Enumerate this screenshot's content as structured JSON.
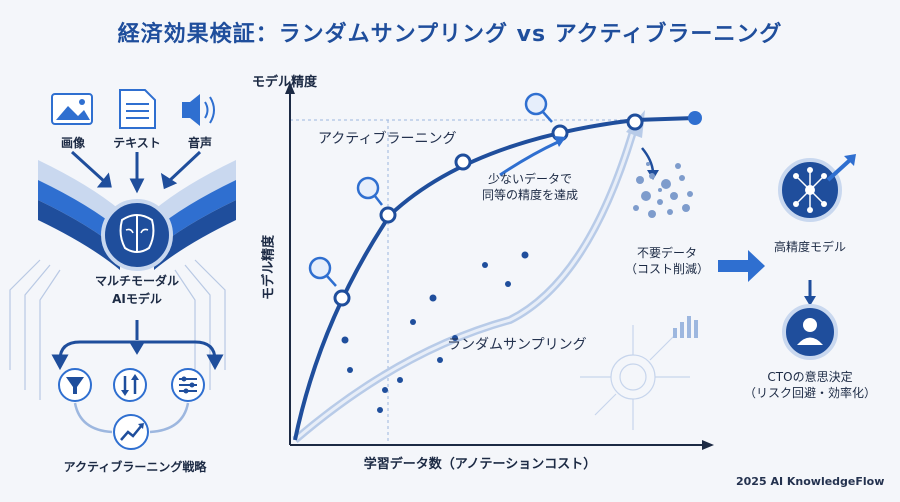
{
  "title": "経済効果検証：ランダムサンプリング vs アクティブラーニング",
  "inputs": {
    "image": "画像",
    "text": "テキスト",
    "audio": "音声"
  },
  "model": {
    "line1": "マルチモーダル",
    "line2": "AIモデル"
  },
  "strategy": "アクティブラーニング戦略",
  "chart": {
    "y_top_label": "モデル精度",
    "y_axis_label": "モデル精度",
    "x_axis_label": "学習データ数（アノテーションコスト）",
    "active_label": "アクティブラーニング",
    "random_label": "ランダムサンプリング",
    "note_line1": "少ないデータで",
    "note_line2": "同等の精度を達成"
  },
  "right": {
    "waste_line1": "不要データ",
    "waste_line2": "（コスト削減）",
    "high_model": "高精度モデル",
    "cto_line1": "CTOの意思決定",
    "cto_line2": "（リスク回避・効率化）"
  },
  "credit": "2025 AI KnowledgeFlow",
  "colors": {
    "primary": "#1f4e9c",
    "accent": "#2f6fd0",
    "light": "#9db7df"
  },
  "icons": [
    "image-icon",
    "document-icon",
    "speaker-icon",
    "brain-icon",
    "funnel-icon",
    "sort-icon",
    "sliders-icon",
    "trend-icon",
    "network-icon",
    "user-icon",
    "magnifier-icon"
  ]
}
